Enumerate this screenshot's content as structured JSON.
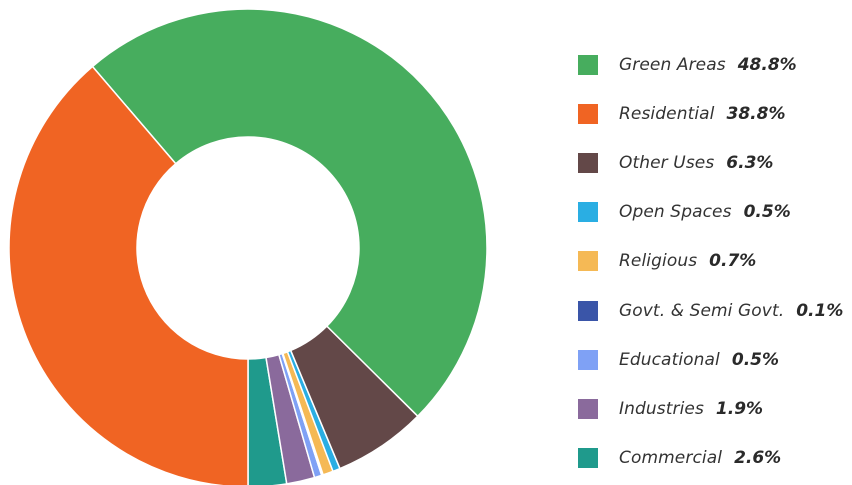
{
  "chart_data": {
    "type": "pie",
    "donut": true,
    "start_angle_deg": 90,
    "direction": "clockwise",
    "legend_position": "right",
    "slices": [
      {
        "label": "Commercial",
        "value": 2.6,
        "display": "2.6%",
        "color": "#1f9a8c"
      },
      {
        "label": "Industries",
        "value": 1.9,
        "display": "1.9%",
        "color": "#8a6a9c"
      },
      {
        "label": "Educational",
        "value": 0.5,
        "display": "0.5%",
        "color": "#7fa1f5"
      },
      {
        "label": "Govt. & Semi Govt.",
        "value": 0.1,
        "display": "0.1%",
        "color": "#3a55a8"
      },
      {
        "label": "Religious",
        "value": 0.7,
        "display": "0.7%",
        "color": "#f5b955"
      },
      {
        "label": "Open Spaces",
        "value": 0.5,
        "display": "0.5%",
        "color": "#2aaee3"
      },
      {
        "label": "Other Uses",
        "value": 6.3,
        "display": "6.3%",
        "color": "#634848"
      },
      {
        "label": "Green Areas",
        "value": 48.8,
        "display": "48.8%",
        "color": "#47ad5e"
      },
      {
        "label": "Residential",
        "value": 38.8,
        "display": "38.8%",
        "color": "#f06423"
      }
    ],
    "legend": [
      {
        "label": "Green Areas",
        "value": "48.8%",
        "color": "#47ad5e"
      },
      {
        "label": "Residential",
        "value": "38.8%",
        "color": "#f06423"
      },
      {
        "label": "Other Uses",
        "value": "6.3%",
        "color": "#634848"
      },
      {
        "label": "Open Spaces",
        "value": "0.5%",
        "color": "#2aaee3"
      },
      {
        "label": "Religious",
        "value": "0.7%",
        "color": "#f5b955"
      },
      {
        "label": "Govt. & Semi Govt.",
        "value": "0.1%",
        "color": "#3a55a8"
      },
      {
        "label": "Educational",
        "value": "0.5%",
        "color": "#7fa1f5"
      },
      {
        "label": "Industries",
        "value": "1.9%",
        "color": "#8a6a9c"
      },
      {
        "label": "Commercial",
        "value": "2.6%",
        "color": "#1f9a8c"
      }
    ]
  }
}
